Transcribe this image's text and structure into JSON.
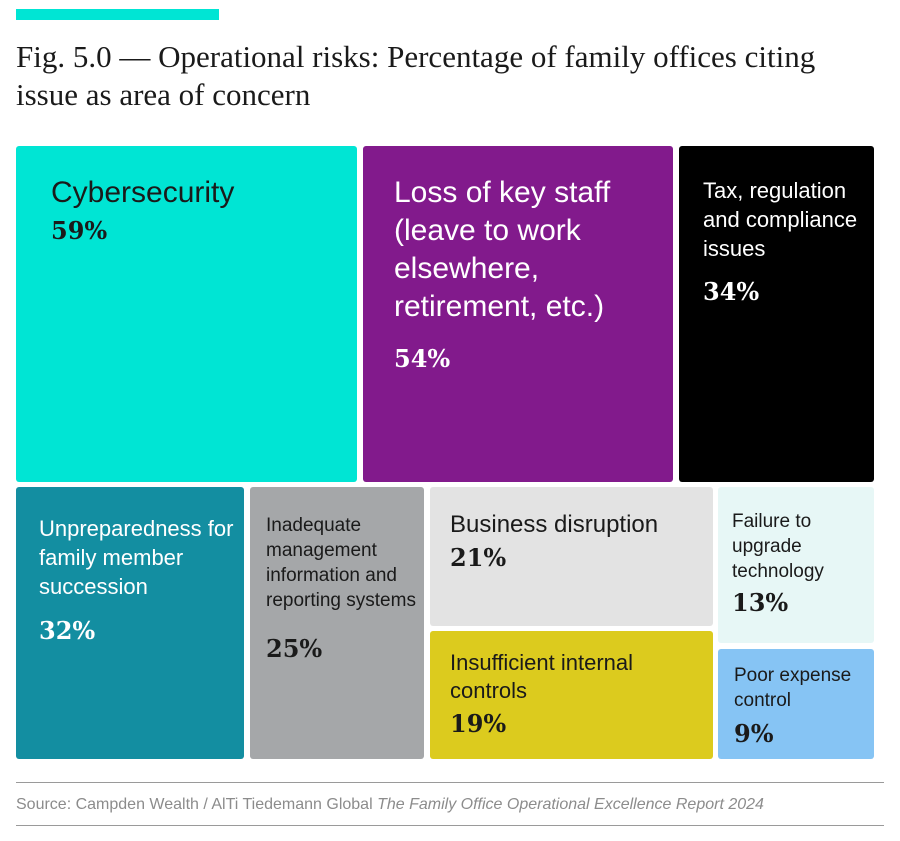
{
  "accent_color": "#00e5d4",
  "title": "Fig. 5.0 — Operational risks: Percentage of family offices citing issue as area of concern",
  "chart_data": {
    "type": "treemap",
    "title": "Fig. 5.0 — Operational risks: Percentage of family offices citing issue as area of concern",
    "unit": "%",
    "items": [
      {
        "key": "cybersecurity",
        "label": "Cybersecurity",
        "value": 59,
        "value_label": "59%",
        "color": "#00e5d4",
        "text_color": "#1a1a1a"
      },
      {
        "key": "loss-of-key-staff",
        "label": "Loss of key staff (leave to work elsewhere, retirement, etc.)",
        "value": 54,
        "value_label": "54%",
        "color": "#821a8c",
        "text_color": "#ffffff"
      },
      {
        "key": "tax-regulation",
        "label": "Tax, regulation and compliance issues",
        "value": 34,
        "value_label": "34%",
        "color": "#000000",
        "text_color": "#ffffff"
      },
      {
        "key": "succession",
        "label": "Unpreparedness for family member succession",
        "value": 32,
        "value_label": "32%",
        "color": "#138ea1",
        "text_color": "#ffffff"
      },
      {
        "key": "management-info",
        "label": "Inadequate management information and reporting systems",
        "value": 25,
        "value_label": "25%",
        "color": "#a5a7a9",
        "text_color": "#1a1a1a"
      },
      {
        "key": "business-disruption",
        "label": "Business disruption",
        "value": 21,
        "value_label": "21%",
        "color": "#e3e3e3",
        "text_color": "#1a1a1a"
      },
      {
        "key": "internal-controls",
        "label": "Insufficient internal controls",
        "value": 19,
        "value_label": "19%",
        "color": "#dccb1e",
        "text_color": "#1a1a1a"
      },
      {
        "key": "upgrade-technology",
        "label": "Failure to upgrade technology",
        "value": 13,
        "value_label": "13%",
        "color": "#e7f7f6",
        "text_color": "#1a1a1a"
      },
      {
        "key": "expense-control",
        "label": "Poor expense control",
        "value": 9,
        "value_label": "9%",
        "color": "#86c4f4",
        "text_color": "#1a1a1a"
      }
    ]
  },
  "source": {
    "prefix": "Source: Campden Wealth / AlTi Tiedemann Global ",
    "publication": "The Family Office Operational Excellence Report 2024"
  }
}
